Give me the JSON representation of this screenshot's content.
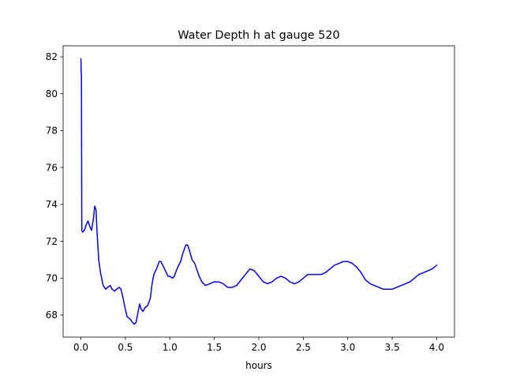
{
  "chart_data": {
    "type": "line",
    "title": "Water Depth h at gauge 520",
    "xlabel": "hours",
    "ylabel": "",
    "xlim": [
      -0.2,
      4.2
    ],
    "ylim": [
      66.8,
      82.6
    ],
    "xticks": [
      0.0,
      0.5,
      1.0,
      1.5,
      2.0,
      2.5,
      3.0,
      3.5,
      4.0
    ],
    "xtick_labels": [
      "0.0",
      "0.5",
      "1.0",
      "1.5",
      "2.0",
      "2.5",
      "3.0",
      "3.5",
      "4.0"
    ],
    "yticks": [
      68,
      70,
      72,
      74,
      76,
      78,
      80,
      82
    ],
    "ytick_labels": [
      "68",
      "70",
      "72",
      "74",
      "76",
      "78",
      "80",
      "82"
    ],
    "grid": false,
    "line_color": "#0000ff",
    "series": [
      {
        "x": [
          0.0,
          0.003,
          0.006,
          0.01,
          0.013,
          0.02,
          0.04,
          0.06,
          0.08,
          0.1,
          0.12,
          0.14,
          0.155,
          0.17,
          0.18,
          0.19,
          0.2,
          0.22,
          0.25,
          0.28,
          0.3,
          0.33,
          0.35,
          0.38,
          0.4,
          0.43,
          0.45,
          0.47,
          0.5,
          0.52,
          0.55,
          0.58,
          0.6,
          0.62,
          0.64,
          0.66,
          0.68,
          0.7,
          0.72,
          0.75,
          0.78,
          0.8,
          0.82,
          0.85,
          0.88,
          0.9,
          0.92,
          0.95,
          0.98,
          1.0,
          1.03,
          1.05,
          1.08,
          1.12,
          1.15,
          1.18,
          1.2,
          1.22,
          1.25,
          1.28,
          1.3,
          1.33,
          1.36,
          1.4,
          1.45,
          1.5,
          1.55,
          1.6,
          1.65,
          1.7,
          1.75,
          1.8,
          1.85,
          1.9,
          1.95,
          2.0,
          2.05,
          2.1,
          2.15,
          2.2,
          2.25,
          2.3,
          2.35,
          2.4,
          2.45,
          2.5,
          2.55,
          2.6,
          2.62,
          2.65,
          2.68,
          2.7,
          2.75,
          2.8,
          2.85,
          2.9,
          2.95,
          3.0,
          3.05,
          3.1,
          3.15,
          3.2,
          3.25,
          3.3,
          3.35,
          3.4,
          3.45,
          3.5,
          3.55,
          3.6,
          3.65,
          3.7,
          3.75,
          3.8,
          3.85,
          3.9,
          3.95,
          4.0
        ],
        "y": [
          81.9,
          81.2,
          80.9,
          72.6,
          72.55,
          72.5,
          72.6,
          72.9,
          73.1,
          72.8,
          72.6,
          73.2,
          73.9,
          73.7,
          72.6,
          71.8,
          71.0,
          70.3,
          69.6,
          69.4,
          69.5,
          69.6,
          69.4,
          69.3,
          69.4,
          69.5,
          69.4,
          69.0,
          68.3,
          67.9,
          67.8,
          67.6,
          67.5,
          67.6,
          68.1,
          68.6,
          68.3,
          68.2,
          68.4,
          68.5,
          68.9,
          69.7,
          70.2,
          70.5,
          70.9,
          70.9,
          70.7,
          70.4,
          70.1,
          70.1,
          70.0,
          70.1,
          70.5,
          70.9,
          71.4,
          71.8,
          71.8,
          71.5,
          71.0,
          70.8,
          70.5,
          70.1,
          69.8,
          69.6,
          69.7,
          69.8,
          69.8,
          69.7,
          69.5,
          69.5,
          69.6,
          69.9,
          70.2,
          70.5,
          70.4,
          70.1,
          69.8,
          69.7,
          69.8,
          70.0,
          70.1,
          70.0,
          69.8,
          69.7,
          69.8,
          70.0,
          70.2,
          70.2,
          70.2,
          70.2,
          70.2,
          70.2,
          70.3,
          70.5,
          70.7,
          70.8,
          70.9,
          70.9,
          70.8,
          70.6,
          70.3,
          69.9,
          69.7,
          69.6,
          69.5,
          69.4,
          69.4,
          69.4,
          69.5,
          69.6,
          69.7,
          69.8,
          70.0,
          70.2,
          70.3,
          70.4,
          70.5,
          70.7
        ]
      }
    ]
  }
}
